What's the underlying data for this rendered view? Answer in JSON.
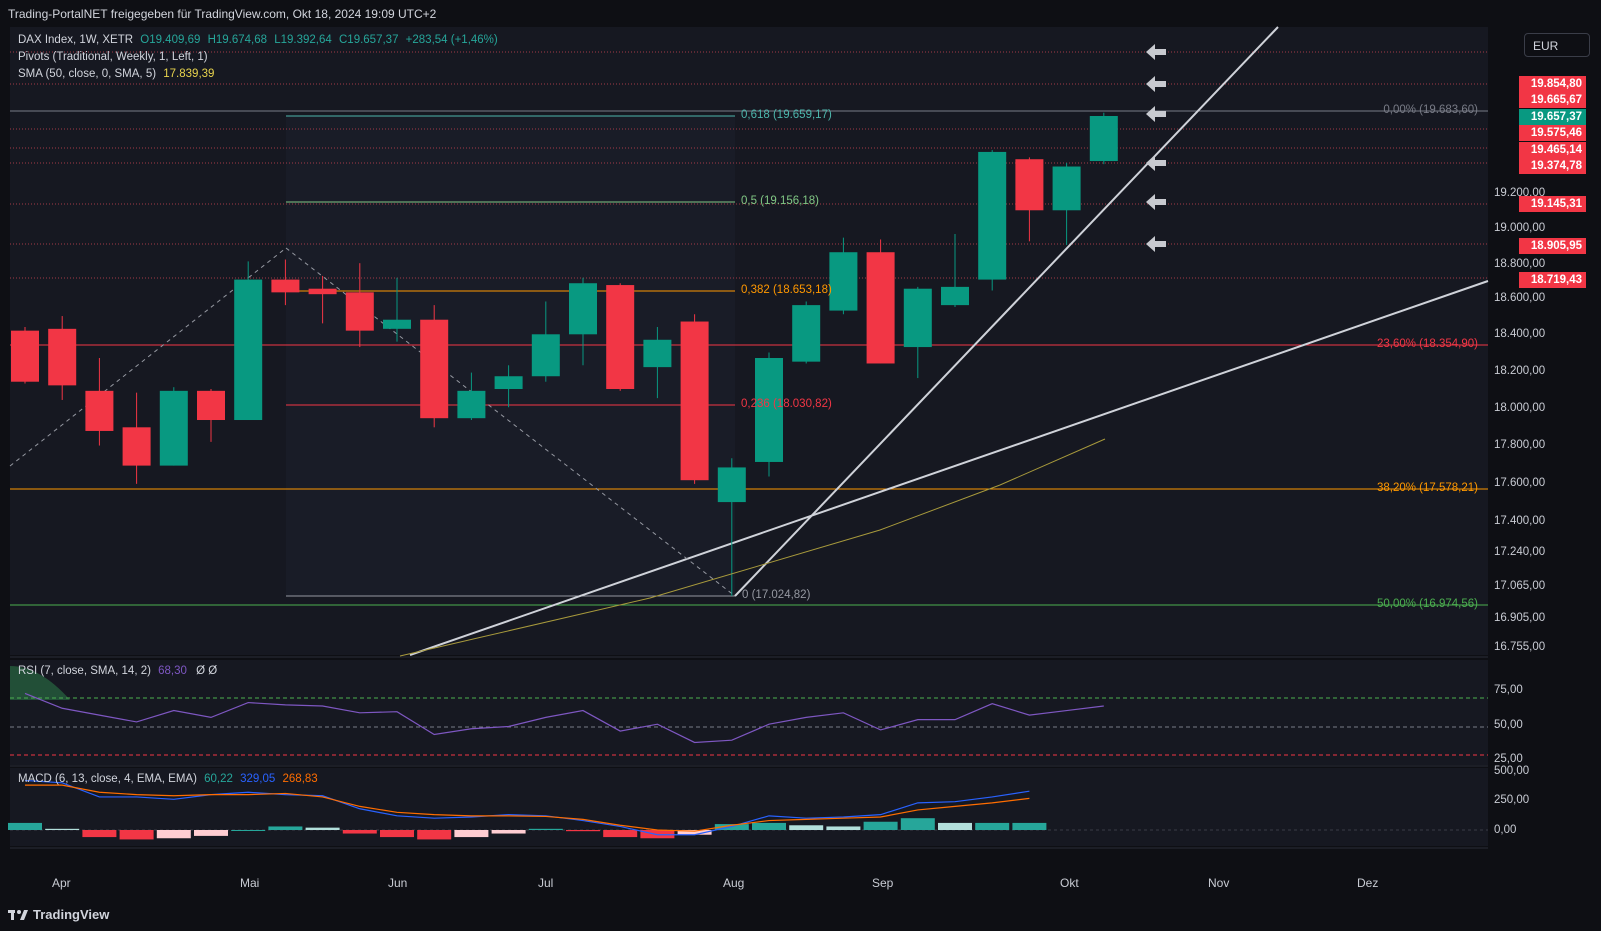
{
  "header": {
    "attribution": "Trading-PortalNET freigegeben für TradingView.com, Okt 18, 2024 19:09 UTC+2"
  },
  "legend": {
    "symbol": "DAX Index, 1W, XETR",
    "open": "O19.409,69",
    "high": "H19.674,68",
    "low": "L19.392,64",
    "close": "C19.657,37",
    "change": "+283,54 (+1,46%)",
    "pivots": "Pivots (Traditional, Weekly, 1, Left, 1)",
    "sma_label": "SMA (50, close, 0, SMA, 5)",
    "sma_value": "17.839,39"
  },
  "currency": "EUR",
  "price_axis": [
    "19.200,00",
    "19.000,00",
    "18.800,00",
    "18.600,00",
    "18.400,00",
    "18.200,00",
    "18.000,00",
    "17.800,00",
    "17.600,00",
    "17.400,00",
    "17.240,00",
    "17.065,00",
    "16.905,00",
    "16.755,00"
  ],
  "price_tags": [
    {
      "label": "19.854,80",
      "color": "#f23645"
    },
    {
      "label": "19.665,67",
      "color": "#f23645"
    },
    {
      "label": "19.657,37",
      "color": "#089981"
    },
    {
      "label": "19.575,46",
      "color": "#f23645"
    },
    {
      "label": "19.465,14",
      "color": "#f23645"
    },
    {
      "label": "19.374,78",
      "color": "#f23645"
    },
    {
      "label": "19.145,31",
      "color": "#f23645"
    },
    {
      "label": "18.905,95",
      "color": "#f23645"
    },
    {
      "label": "18.719,43",
      "color": "#f23645"
    }
  ],
  "fib_retracement": [
    {
      "label": "0,618 (19.659,17)",
      "color": "#4db6ac"
    },
    {
      "label": "0,5 (19.156,18)",
      "color": "#81c784"
    },
    {
      "label": "0,382 (18.653,18)",
      "color": "#ff9800"
    },
    {
      "label": "0,236 (18.030,82)",
      "color": "#f23645"
    },
    {
      "label": "0 (17.024,82)",
      "color": "#9598a1"
    }
  ],
  "fib_right": [
    {
      "label": "0,00% (19.683,60)",
      "color": "#787b86"
    },
    {
      "label": "23,60% (18.354,90)",
      "color": "#f23645"
    },
    {
      "label": "38,20% (17.578,21)",
      "color": "#ff9800"
    },
    {
      "label": "50,00% (16.974,56)",
      "color": "#4caf50"
    }
  ],
  "rsi": {
    "label": "RSI (7, close, SMA, 14, 2)",
    "value": "68,30",
    "extra": "Ø Ø",
    "axis": [
      "75,00",
      "50,00",
      "25,00"
    ]
  },
  "macd": {
    "label": "MACD (6, 13, close, 4, EMA, EMA)",
    "v1": "60,22",
    "v2": "329,05",
    "v3": "268,83",
    "axis": [
      "500,00",
      "250,00",
      "0,00"
    ]
  },
  "time_axis": [
    "Apr",
    "Mai",
    "Jun",
    "Jul",
    "Aug",
    "Sep",
    "Okt",
    "Nov",
    "Dez"
  ],
  "footer": {
    "brand": "TradingView"
  },
  "chart_data": {
    "type": "candlestick",
    "candles": [
      {
        "o": 18480,
        "h": 18500,
        "l": 18190,
        "c": 18200
      },
      {
        "o": 18490,
        "h": 18560,
        "l": 18100,
        "c": 18180
      },
      {
        "o": 18150,
        "h": 18330,
        "l": 17850,
        "c": 17930
      },
      {
        "o": 17950,
        "h": 18140,
        "l": 17640,
        "c": 17740
      },
      {
        "o": 17740,
        "h": 18170,
        "l": 17740,
        "c": 18150
      },
      {
        "o": 18150,
        "h": 18160,
        "l": 17870,
        "c": 17990
      },
      {
        "o": 17990,
        "h": 18860,
        "l": 17990,
        "c": 18760
      },
      {
        "o": 18760,
        "h": 18870,
        "l": 18620,
        "c": 18690
      },
      {
        "o": 18710,
        "h": 18780,
        "l": 18520,
        "c": 18680
      },
      {
        "o": 18690,
        "h": 18850,
        "l": 18390,
        "c": 18480
      },
      {
        "o": 18490,
        "h": 18770,
        "l": 18420,
        "c": 18540
      },
      {
        "o": 18540,
        "h": 18620,
        "l": 17950,
        "c": 18000
      },
      {
        "o": 18000,
        "h": 18250,
        "l": 17990,
        "c": 18150
      },
      {
        "o": 18160,
        "h": 18290,
        "l": 18060,
        "c": 18230
      },
      {
        "o": 18230,
        "h": 18640,
        "l": 18200,
        "c": 18460
      },
      {
        "o": 18460,
        "h": 18770,
        "l": 18290,
        "c": 18740
      },
      {
        "o": 18730,
        "h": 18740,
        "l": 18150,
        "c": 18160
      },
      {
        "o": 18280,
        "h": 18500,
        "l": 18110,
        "c": 18430
      },
      {
        "o": 18530,
        "h": 18570,
        "l": 17640,
        "c": 17660
      },
      {
        "o": 17540,
        "h": 17780,
        "l": 17025,
        "c": 17730
      },
      {
        "o": 17760,
        "h": 18360,
        "l": 17680,
        "c": 18330
      },
      {
        "o": 18310,
        "h": 18640,
        "l": 18300,
        "c": 18620
      },
      {
        "o": 18590,
        "h": 18990,
        "l": 18570,
        "c": 18910
      },
      {
        "o": 18910,
        "h": 18980,
        "l": 18300,
        "c": 18300
      },
      {
        "o": 18390,
        "h": 18720,
        "l": 18220,
        "c": 18710
      },
      {
        "o": 18620,
        "h": 19010,
        "l": 18610,
        "c": 18720
      },
      {
        "o": 18760,
        "h": 19470,
        "l": 18700,
        "c": 19460
      },
      {
        "o": 19420,
        "h": 19430,
        "l": 18970,
        "c": 19140
      },
      {
        "o": 19140,
        "h": 19400,
        "l": 18950,
        "c": 19380
      },
      {
        "o": 19410,
        "h": 19675,
        "l": 19393,
        "c": 19657
      }
    ],
    "sma_50": [
      17200,
      17330,
      17460,
      17590,
      17840
    ],
    "rsi_values": [
      79,
      66,
      60,
      54,
      64,
      58,
      71,
      69,
      68,
      62,
      63,
      43,
      48,
      50,
      58,
      64,
      46,
      52,
      36,
      38,
      52,
      58,
      62,
      47,
      56,
      56,
      70,
      60,
      64,
      68
    ],
    "macd_line": [
      420,
      400,
      280,
      280,
      260,
      300,
      320,
      300,
      290,
      180,
      120,
      100,
      110,
      130,
      120,
      80,
      30,
      -40,
      -40,
      30,
      120,
      100,
      110,
      130,
      230,
      240,
      280,
      329
    ],
    "signal_line": [
      380,
      380,
      320,
      300,
      290,
      300,
      300,
      310,
      280,
      200,
      150,
      130,
      120,
      120,
      115,
      90,
      40,
      0,
      -10,
      40,
      80,
      90,
      100,
      110,
      170,
      200,
      230,
      268
    ],
    "histogram": [
      60,
      10,
      -60,
      -80,
      -70,
      -50,
      0,
      30,
      20,
      -30,
      -60,
      -80,
      -60,
      -30,
      10,
      -10,
      -60,
      -70,
      -40,
      50,
      60,
      40,
      30,
      70,
      100,
      60,
      60,
      60
    ],
    "ylim": [
      16755,
      19854
    ]
  }
}
